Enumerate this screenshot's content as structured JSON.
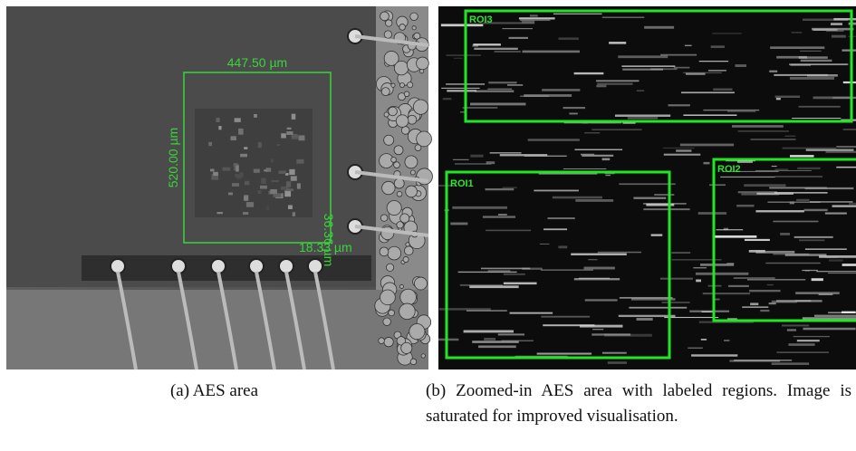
{
  "figure": {
    "panels": [
      {
        "caption": "(a) AES area",
        "annotations": [
          "447.50 µm",
          "520.00 µm",
          "36.36 µm",
          "18.33 µm"
        ]
      },
      {
        "caption": "(b) Zoomed-in AES area with labeled regions. Image is saturated for improved visualisation.",
        "regions": [
          "ROI3",
          "ROI1",
          "ROI2"
        ]
      }
    ]
  }
}
